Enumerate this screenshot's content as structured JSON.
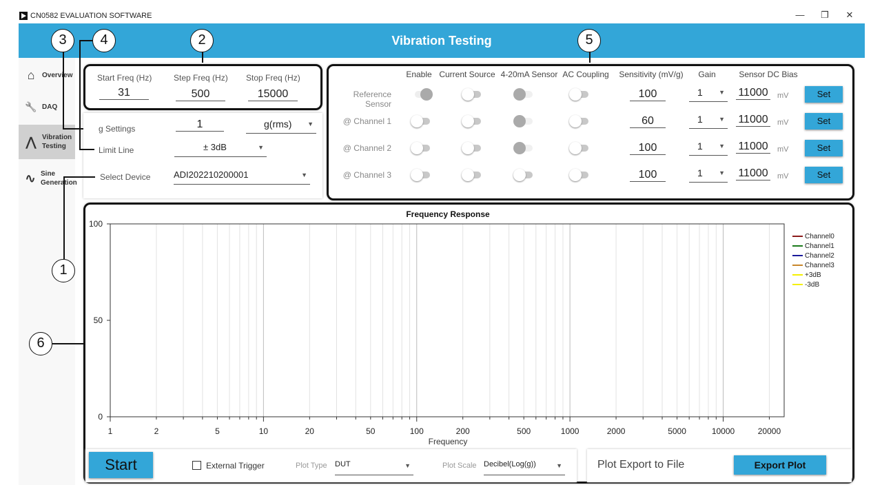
{
  "window": {
    "title": "CN0582 EVALUATION SOFTWARE",
    "minimize": "—",
    "restore": "❐",
    "close": "✕"
  },
  "header": {
    "title": "Vibration Testing"
  },
  "sidebar": {
    "items": [
      {
        "label": "Overview",
        "icon": "home-icon",
        "glyph": "⌂"
      },
      {
        "label": "DAQ",
        "icon": "wrench-icon",
        "glyph": "🔧"
      },
      {
        "label": "Vibration Testing",
        "icon": "bell-curve-icon",
        "glyph": "⋀",
        "active": true
      },
      {
        "label": "Sine Generation",
        "icon": "sine-wave-icon",
        "glyph": "∿"
      }
    ]
  },
  "freq": {
    "start_label": "Start Freq (Hz)",
    "start": "31",
    "step_label": "Step Freq (Hz)",
    "step": "500",
    "stop_label": "Stop Freq (Hz)",
    "stop": "15000"
  },
  "settings": {
    "g_label": "g Settings",
    "g_value": "1",
    "g_unit": "g(rms)",
    "limit_label": "Limit Line",
    "limit_value": "± 3dB",
    "device_label": "Select Device",
    "device_value": "ADI202210200001"
  },
  "sensors": {
    "headers": [
      "Enable",
      "Current Source",
      "4-20mA Sensor",
      "AC Coupling",
      "Sensitivity (mV/g)",
      "Gain",
      "Sensor DC Bias"
    ],
    "rows": [
      {
        "label": "Reference Sensor",
        "enable": "on",
        "current": "off",
        "ma": "disabled-on",
        "ac": "off",
        "sensitivity": "100",
        "gain": "1",
        "bias": "11000",
        "unit": "mV",
        "set": "Set"
      },
      {
        "label": "@ Channel 1",
        "enable": "off",
        "current": "off",
        "ma": "disabled-on",
        "ac": "off",
        "sensitivity": "60",
        "gain": "1",
        "bias": "11000",
        "unit": "mV",
        "set": "Set"
      },
      {
        "label": "@ Channel 2",
        "enable": "off",
        "current": "off",
        "ma": "disabled-on",
        "ac": "off",
        "sensitivity": "100",
        "gain": "1",
        "bias": "11000",
        "unit": "mV",
        "set": "Set"
      },
      {
        "label": "@ Channel 3",
        "enable": "off",
        "current": "off",
        "ma": "off",
        "ac": "off",
        "sensitivity": "100",
        "gain": "1",
        "bias": "11000",
        "unit": "mV",
        "set": "Set"
      }
    ]
  },
  "chart_data": {
    "type": "line",
    "title": "Frequency Response",
    "xlabel": "Frequency",
    "ylabel": "",
    "xscale": "log",
    "xlim": [
      1,
      25000
    ],
    "ylim": [
      0,
      100
    ],
    "xticks": [
      1,
      2,
      5,
      10,
      20,
      50,
      100,
      200,
      500,
      1000,
      2000,
      5000,
      10000,
      20000
    ],
    "yticks": [
      0,
      50,
      100
    ],
    "grid": "vertical",
    "legend_position": "right",
    "series": [
      {
        "name": "Channel0",
        "color": "#8b1a1a",
        "values": []
      },
      {
        "name": "Channel1",
        "color": "#1a7a1a",
        "values": []
      },
      {
        "name": "Channel2",
        "color": "#1a1a9a",
        "values": []
      },
      {
        "name": "Channel3",
        "color": "#c8862a",
        "values": []
      },
      {
        "name": "+3dB",
        "color": "#f5f000",
        "values": []
      },
      {
        "name": "-3dB",
        "color": "#f5f000",
        "values": []
      }
    ]
  },
  "footer": {
    "start": "Start",
    "external_trigger": "External Trigger",
    "plot_type_label": "Plot Type",
    "plot_type": "DUT",
    "plot_scale_label": "Plot Scale",
    "plot_scale": "Decibel(Log(g))",
    "export_label": "Plot Export to File",
    "export_button": "Export Plot"
  },
  "annotations": [
    "1",
    "2",
    "3",
    "4",
    "5",
    "6"
  ],
  "colors": {
    "accent": "#33a6d8"
  }
}
